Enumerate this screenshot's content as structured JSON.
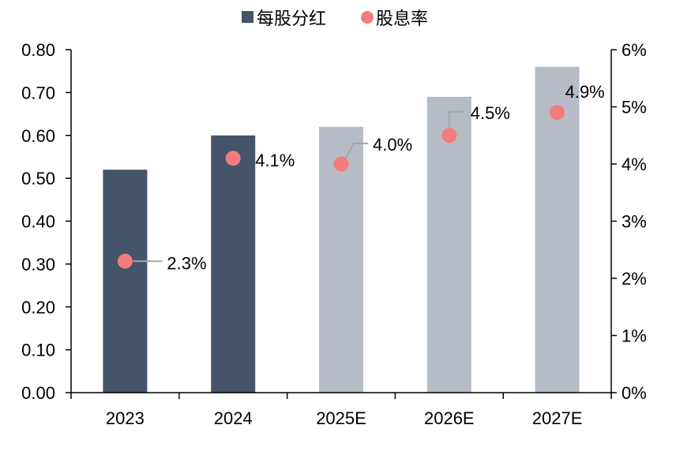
{
  "chart_data": {
    "type": "bar",
    "categories": [
      "2023",
      "2024",
      "2025E",
      "2026E",
      "2027E"
    ],
    "series": [
      {
        "name": "每股分红",
        "type": "bar",
        "axis": "left",
        "values": [
          0.52,
          0.6,
          0.62,
          0.69,
          0.76
        ],
        "colors": [
          "#44546a",
          "#44546a",
          "#b5bcc6",
          "#b5bcc6",
          "#b5bcc6"
        ]
      },
      {
        "name": "股息率",
        "type": "scatter",
        "axis": "right",
        "values": [
          2.3,
          4.1,
          4.0,
          4.5,
          4.9
        ],
        "labels": [
          "2.3%",
          "4.1%",
          "4.0%",
          "4.5%",
          "4.9%"
        ],
        "color": "#f47c7c"
      }
    ],
    "y_left": {
      "ylim": [
        0,
        0.8
      ],
      "ticks": [
        "0.00",
        "0.10",
        "0.20",
        "0.30",
        "0.40",
        "0.50",
        "0.60",
        "0.70",
        "0.80"
      ]
    },
    "y_right": {
      "ylim": [
        0,
        6
      ],
      "ticks": [
        "0%",
        "1%",
        "2%",
        "3%",
        "4%",
        "5%",
        "6%"
      ]
    },
    "legend": {
      "position": "top",
      "items": [
        {
          "label": "每股分红",
          "color": "#44546a",
          "shape": "square"
        },
        {
          "label": "股息率",
          "color": "#f47c7c",
          "shape": "circle"
        }
      ]
    },
    "grid": false
  }
}
